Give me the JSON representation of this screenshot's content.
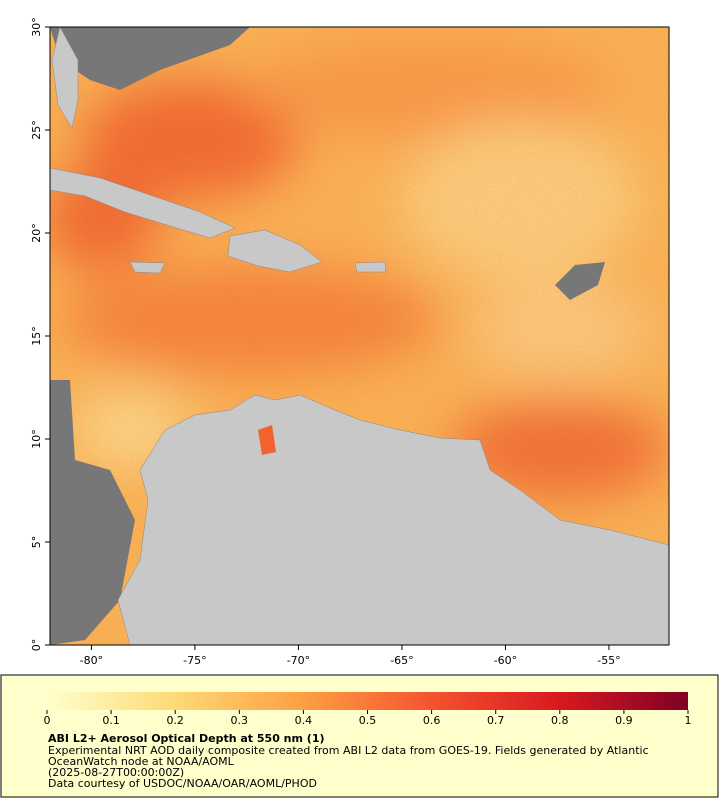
{
  "map": {
    "xlim": [
      -82,
      -52.1
    ],
    "ylim": [
      0,
      30
    ],
    "xticks": [
      {
        "value": -80,
        "label": "-80°"
      },
      {
        "value": -75,
        "label": "-75°"
      },
      {
        "value": -70,
        "label": "-70°"
      },
      {
        "value": -65,
        "label": "-65°"
      },
      {
        "value": -60,
        "label": "-60°"
      },
      {
        "value": -55,
        "label": "-55°"
      }
    ],
    "yticks": [
      {
        "value": 0,
        "label": "0°"
      },
      {
        "value": 5,
        "label": "5°"
      },
      {
        "value": 10,
        "label": "10°"
      },
      {
        "value": 15,
        "label": "15°"
      },
      {
        "value": 20,
        "label": "20°"
      },
      {
        "value": 25,
        "label": "25°"
      },
      {
        "value": 30,
        "label": "30°"
      }
    ]
  },
  "colorbar": {
    "clim": [
      0,
      1
    ],
    "ticks": [
      0,
      0.1,
      0.2,
      0.3,
      0.4,
      0.5,
      0.6,
      0.7,
      0.8,
      0.9,
      1
    ]
  },
  "footer": {
    "title": "ABI L2+ Aerosol Optical Depth at 550 nm (1)",
    "lines": [
      "Experimental NRT AOD daily composite created from ABI L2 data from GOES-19. Fields generated by Atlantic",
      "OceanWatch node at NOAA/AOML",
      "(2025-08-27T00:00:00Z)",
      "Data courtesy of USDOC/NOAA/OAR/AOML/PHOD"
    ]
  }
}
